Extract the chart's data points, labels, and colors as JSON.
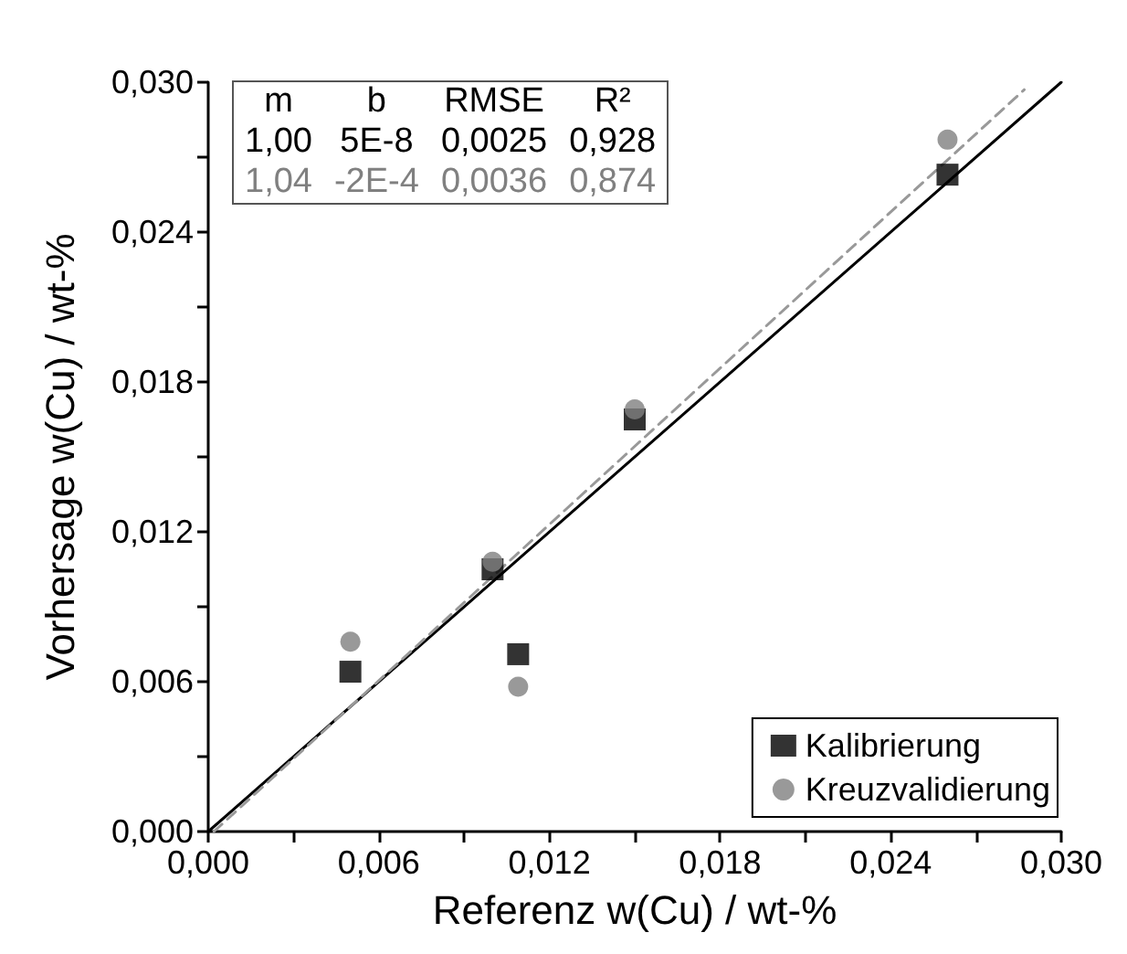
{
  "chart_data": {
    "type": "scatter",
    "xlabel": "Referenz w(Cu) / wt-%",
    "ylabel": "Vorhersage w(Cu) / wt-%",
    "series": [
      {
        "name": "Kalibrierung",
        "marker": "square",
        "color": "#000000",
        "x": [
          0.005,
          0.01,
          0.0109,
          0.015,
          0.026
        ],
        "values": [
          0.0064,
          0.0105,
          0.0071,
          0.0165,
          0.0263
        ]
      },
      {
        "name": "Kreuzvalidierung",
        "marker": "circle",
        "color": "#808080",
        "x": [
          0.005,
          0.01,
          0.0109,
          0.015,
          0.026
        ],
        "values": [
          0.0076,
          0.0108,
          0.0058,
          0.0169,
          0.0277
        ]
      },
      {
        "type": "line",
        "marker": "none",
        "line_style": "solid",
        "color": "#000000",
        "x": [
          0,
          0.03
        ],
        "values": [
          0,
          0.03
        ]
      },
      {
        "type": "line",
        "marker": "none",
        "line_style": "dashed",
        "color": "#999999",
        "x": [
          0.0002,
          0.0287
        ],
        "values": [
          0,
          0.0297
        ]
      }
    ],
    "annotations": [
      "m",
      "b",
      "RMSE",
      "R²",
      "1,00",
      "5E-8",
      "0,0025",
      "0,928",
      "1,04",
      "-2E-4",
      "0,0036",
      "0,874"
    ],
    "xlim": [
      0,
      0.03
    ],
    "ylim": [
      0,
      0.03
    ],
    "xticks": [
      {
        "value": 0,
        "label": "0,000"
      },
      {
        "value": 0.003,
        "label": null
      },
      {
        "value": 0.006,
        "label": "0,006"
      },
      {
        "value": 0.009,
        "label": null
      },
      {
        "value": 0.012,
        "label": "0,012"
      },
      {
        "value": 0.015,
        "label": null
      },
      {
        "value": 0.018,
        "label": "0,018"
      },
      {
        "value": 0.021,
        "label": null
      },
      {
        "value": 0.024,
        "label": "0,024"
      },
      {
        "value": 0.027,
        "label": null
      },
      {
        "value": 0.03,
        "label": "0,030"
      }
    ],
    "yticks": [
      {
        "value": 0,
        "label": "0,000"
      },
      {
        "value": 0.003,
        "label": null
      },
      {
        "value": 0.006,
        "label": "0,006"
      },
      {
        "value": 0.009,
        "label": null
      },
      {
        "value": 0.012,
        "label": "0,012"
      },
      {
        "value": 0.015,
        "label": null
      },
      {
        "value": 0.018,
        "label": "0,018"
      },
      {
        "value": 0.021,
        "label": null
      },
      {
        "value": 0.024,
        "label": "0,024"
      },
      {
        "value": 0.027,
        "label": null
      },
      {
        "value": 0.03,
        "label": "0,030"
      }
    ],
    "grid": false,
    "legend": "bottom right"
  }
}
